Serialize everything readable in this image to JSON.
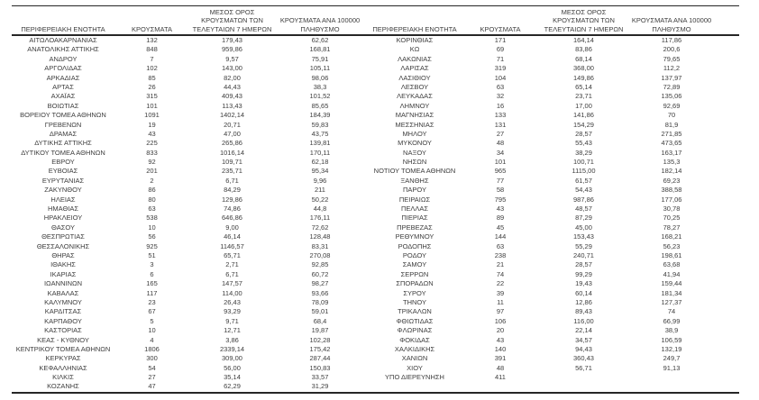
{
  "colors": {
    "background": "#ffffff",
    "text": "#3d3d3d",
    "rule": "#262626"
  },
  "table": {
    "headers": {
      "region": "ΠΕΡΙΦΕΡΕΙΑΚΗ ΕΝΟΤΗΤΑ",
      "cases": "ΚΡΟΥΣΜΑΤΑ",
      "avg_line1": "ΜΕΣΟΣ ΟΡΟΣ",
      "avg_line2": "ΚΡΟΥΣΜΑΤΩΝ ΤΩΝ",
      "avg_line3": "ΤΕΛΕΥΤΑΙΩΝ 7 ΗΜΕΡΩΝ",
      "per100k_line1": "ΚΡΟΥΣΜΑΤΑ ΑΝΑ 100000",
      "per100k_line2": "ΠΛΗΘΥΣΜΟ"
    },
    "left_rows": [
      [
        "ΑΙΤΩΛΟΑΚΑΡΝΑΝΙΑΣ",
        "132",
        "179,43",
        "62,62"
      ],
      [
        "ΑΝΑΤΟΛΙΚΗΣ ΑΤΤΙΚΗΣ",
        "848",
        "959,86",
        "168,81"
      ],
      [
        "ΑΝΔΡΟΥ",
        "7",
        "9,57",
        "75,91"
      ],
      [
        "ΑΡΓΟΛΙΔΑΣ",
        "102",
        "143,00",
        "105,11"
      ],
      [
        "ΑΡΚΑΔΙΑΣ",
        "85",
        "82,00",
        "98,06"
      ],
      [
        "ΑΡΤΑΣ",
        "26",
        "44,43",
        "38,3"
      ],
      [
        "ΑΧΑΪΑΣ",
        "315",
        "409,43",
        "101,52"
      ],
      [
        "ΒΟΙΩΤΙΑΣ",
        "101",
        "113,43",
        "85,65"
      ],
      [
        "ΒΟΡΕΙΟΥ ΤΟΜΕΑ ΑΘΗΝΩΝ",
        "1091",
        "1402,14",
        "184,39"
      ],
      [
        "ΓΡΕΒΕΝΩΝ",
        "19",
        "20,71",
        "59,83"
      ],
      [
        "ΔΡΑΜΑΣ",
        "43",
        "47,00",
        "43,75"
      ],
      [
        "ΔΥΤΙΚΗΣ ΑΤΤΙΚΗΣ",
        "225",
        "265,86",
        "139,81"
      ],
      [
        "ΔΥΤΙΚΟΥ ΤΟΜΕΑ ΑΘΗΝΩΝ",
        "833",
        "1016,14",
        "170,11"
      ],
      [
        "ΕΒΡΟΥ",
        "92",
        "109,71",
        "62,18"
      ],
      [
        "ΕΥΒΟΙΑΣ",
        "201",
        "235,71",
        "95,34"
      ],
      [
        "ΕΥΡΥΤΑΝΙΑΣ",
        "2",
        "6,71",
        "9,96"
      ],
      [
        "ΖΑΚΥΝΘΟΥ",
        "86",
        "84,29",
        "211"
      ],
      [
        "ΗΛΕΙΑΣ",
        "80",
        "129,86",
        "50,22"
      ],
      [
        "ΗΜΑΘΙΑΣ",
        "63",
        "74,86",
        "44,8"
      ],
      [
        "ΗΡΑΚΛΕΙΟΥ",
        "538",
        "646,86",
        "176,11"
      ],
      [
        "ΘΑΣΟΥ",
        "10",
        "9,00",
        "72,62"
      ],
      [
        "ΘΕΣΠΡΩΤΙΑΣ",
        "56",
        "46,14",
        "128,48"
      ],
      [
        "ΘΕΣΣΑΛΟΝΙΚΗΣ",
        "925",
        "1146,57",
        "83,31"
      ],
      [
        "ΘΗΡΑΣ",
        "51",
        "65,71",
        "270,08"
      ],
      [
        "ΙΘΑΚΗΣ",
        "3",
        "2,71",
        "92,85"
      ],
      [
        "ΙΚΑΡΙΑΣ",
        "6",
        "6,71",
        "60,72"
      ],
      [
        "ΙΩΑΝΝΙΝΩΝ",
        "165",
        "147,57",
        "98,27"
      ],
      [
        "ΚΑΒΑΛΑΣ",
        "117",
        "114,00",
        "93,66"
      ],
      [
        "ΚΑΛΥΜΝΟΥ",
        "23",
        "26,43",
        "78,09"
      ],
      [
        "ΚΑΡΔΙΤΣΑΣ",
        "67",
        "93,29",
        "59,01"
      ],
      [
        "ΚΑΡΠΑΘΟΥ",
        "5",
        "9,71",
        "68,4"
      ],
      [
        "ΚΑΣΤΟΡΙΑΣ",
        "10",
        "12,71",
        "19,87"
      ],
      [
        "ΚΕΑΣ - ΚΥΘΝΟΥ",
        "4",
        "3,86",
        "102,28"
      ],
      [
        "ΚΕΝΤΡΙΚΟΥ ΤΟΜΕΑ ΑΘΗΝΩΝ",
        "1806",
        "2339,14",
        "175,42"
      ],
      [
        "ΚΕΡΚΥΡΑΣ",
        "300",
        "309,00",
        "287,44"
      ],
      [
        "ΚΕΦΑΛΛΗΝΙΑΣ",
        "54",
        "56,00",
        "150,83"
      ],
      [
        "ΚΙΛΚΙΣ",
        "27",
        "35,14",
        "33,57"
      ],
      [
        "ΚΟΖΑΝΗΣ",
        "47",
        "62,29",
        "31,29"
      ]
    ],
    "right_rows": [
      [
        "ΚΟΡΙΝΘΙΑΣ",
        "171",
        "164,14",
        "117,86"
      ],
      [
        "ΚΩ",
        "69",
        "83,86",
        "200,6"
      ],
      [
        "ΛΑΚΩΝΙΑΣ",
        "71",
        "68,14",
        "79,65"
      ],
      [
        "ΛΑΡΙΣΑΣ",
        "319",
        "368,00",
        "112,2"
      ],
      [
        "ΛΑΣΙΘΙΟΥ",
        "104",
        "149,86",
        "137,97"
      ],
      [
        "ΛΕΣΒΟΥ",
        "63",
        "65,14",
        "72,89"
      ],
      [
        "ΛΕΥΚΑΔΑΣ",
        "32",
        "23,71",
        "135,06"
      ],
      [
        "ΛΗΜΝΟΥ",
        "16",
        "17,00",
        "92,69"
      ],
      [
        "ΜΑΓΝΗΣΙΑΣ",
        "133",
        "141,86",
        "70"
      ],
      [
        "ΜΕΣΣΗΝΙΑΣ",
        "131",
        "154,29",
        "81,9"
      ],
      [
        "ΜΗΛΟΥ",
        "27",
        "28,57",
        "271,85"
      ],
      [
        "ΜΥΚΟΝΟΥ",
        "48",
        "55,43",
        "473,65"
      ],
      [
        "ΝΑΞΟΥ",
        "34",
        "38,29",
        "163,17"
      ],
      [
        "ΝΗΣΩΝ",
        "101",
        "100,71",
        "135,3"
      ],
      [
        "ΝΟΤΙΟΥ ΤΟΜΕΑ ΑΘΗΝΩΝ",
        "965",
        "1115,00",
        "182,14"
      ],
      [
        "ΞΑΝΘΗΣ",
        "77",
        "61,57",
        "69,23"
      ],
      [
        "ΠΑΡΟΥ",
        "58",
        "54,43",
        "388,58"
      ],
      [
        "ΠΕΙΡΑΙΩΣ",
        "795",
        "987,86",
        "177,06"
      ],
      [
        "ΠΕΛΛΑΣ",
        "43",
        "48,57",
        "30,78"
      ],
      [
        "ΠΙΕΡΙΑΣ",
        "89",
        "87,29",
        "70,25"
      ],
      [
        "ΠΡΕΒΕΖΑΣ",
        "45",
        "45,00",
        "78,27"
      ],
      [
        "ΡΕΘΥΜΝΟΥ",
        "144",
        "153,43",
        "168,21"
      ],
      [
        "ΡΟΔΟΠΗΣ",
        "63",
        "55,29",
        "56,23"
      ],
      [
        "ΡΟΔΟΥ",
        "238",
        "240,71",
        "198,61"
      ],
      [
        "ΣΑΜΟΥ",
        "21",
        "28,57",
        "63,68"
      ],
      [
        "ΣΕΡΡΩΝ",
        "74",
        "99,29",
        "41,94"
      ],
      [
        "ΣΠΟΡΑΔΩΝ",
        "22",
        "19,43",
        "159,44"
      ],
      [
        "ΣΥΡΟΥ",
        "39",
        "60,14",
        "181,34"
      ],
      [
        "ΤΗΝΟΥ",
        "11",
        "12,86",
        "127,37"
      ],
      [
        "ΤΡΙΚΑΛΩΝ",
        "97",
        "89,43",
        "74"
      ],
      [
        "ΦΘΙΩΤΙΔΑΣ",
        "106",
        "116,00",
        "66,99"
      ],
      [
        "ΦΛΩΡΙΝΑΣ",
        "20",
        "22,14",
        "38,9"
      ],
      [
        "ΦΟΚΙΔΑΣ",
        "43",
        "34,57",
        "106,59"
      ],
      [
        "ΧΑΛΚΙΔΙΚΗΣ",
        "140",
        "94,43",
        "132,19"
      ],
      [
        "ΧΑΝΙΩΝ",
        "391",
        "360,43",
        "249,7"
      ],
      [
        "ΧΙΟΥ",
        "48",
        "56,71",
        "91,13"
      ],
      [
        "ΥΠΟ ΔΙΕΡΕΥΝΗΣΗ",
        "411",
        "",
        ""
      ]
    ]
  }
}
